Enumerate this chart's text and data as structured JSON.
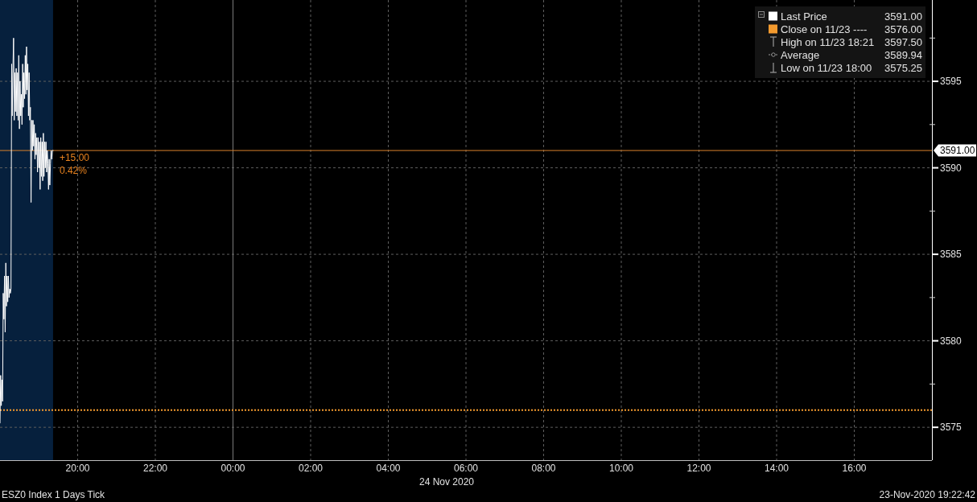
{
  "chart_data": {
    "type": "line",
    "title": "ESZ0 Index 1 Days Tick",
    "subtitle": "23-Nov-2020 19:22:42",
    "xlabel": "24 Nov 2020",
    "x": [
      "2020-11-23T18:00",
      "2020-11-23T18:01",
      "2020-11-23T18:02",
      "2020-11-23T18:03",
      "2020-11-23T18:04",
      "2020-11-23T18:05",
      "2020-11-23T18:06",
      "2020-11-23T18:07",
      "2020-11-23T18:08",
      "2020-11-23T18:09",
      "2020-11-23T18:10",
      "2020-11-23T18:11",
      "2020-11-23T18:12",
      "2020-11-23T18:13",
      "2020-11-23T18:14",
      "2020-11-23T18:15",
      "2020-11-23T18:16",
      "2020-11-23T18:17",
      "2020-11-23T18:18",
      "2020-11-23T18:19",
      "2020-11-23T18:20",
      "2020-11-23T18:21",
      "2020-11-23T18:22",
      "2020-11-23T18:23",
      "2020-11-23T18:24",
      "2020-11-23T18:25",
      "2020-11-23T18:26",
      "2020-11-23T18:27",
      "2020-11-23T18:28",
      "2020-11-23T18:29",
      "2020-11-23T18:30",
      "2020-11-23T18:31",
      "2020-11-23T18:32",
      "2020-11-23T18:33",
      "2020-11-23T18:34",
      "2020-11-23T18:35",
      "2020-11-23T18:36",
      "2020-11-23T18:37",
      "2020-11-23T18:38",
      "2020-11-23T18:39",
      "2020-11-23T18:40",
      "2020-11-23T18:41",
      "2020-11-23T18:42",
      "2020-11-23T18:43",
      "2020-11-23T18:44",
      "2020-11-23T18:45",
      "2020-11-23T18:46",
      "2020-11-23T18:47",
      "2020-11-23T18:48",
      "2020-11-23T18:49",
      "2020-11-23T18:50",
      "2020-11-23T18:51",
      "2020-11-23T18:52",
      "2020-11-23T18:53",
      "2020-11-23T18:54",
      "2020-11-23T18:55",
      "2020-11-23T18:56",
      "2020-11-23T18:57",
      "2020-11-23T18:58",
      "2020-11-23T18:59",
      "2020-11-23T19:00",
      "2020-11-23T19:01",
      "2020-11-23T19:02",
      "2020-11-23T19:03",
      "2020-11-23T19:04",
      "2020-11-23T19:05",
      "2020-11-23T19:06",
      "2020-11-23T19:07",
      "2020-11-23T19:08",
      "2020-11-23T19:09",
      "2020-11-23T19:10",
      "2020-11-23T19:11",
      "2020-11-23T19:12",
      "2020-11-23T19:13",
      "2020-11-23T19:14",
      "2020-11-23T19:15",
      "2020-11-23T19:16",
      "2020-11-23T19:17",
      "2020-11-23T19:18",
      "2020-11-23T19:19",
      "2020-11-23T19:20",
      "2020-11-23T19:21",
      "2020-11-23T19:22"
    ],
    "series": [
      {
        "name": "Last Price",
        "color": "#ffffff",
        "values": [
          3575.25,
          3578.0,
          3576.25,
          3577.75,
          3576.5,
          3582.75,
          3581.25,
          3583.75,
          3580.5,
          3584.5,
          3582.0,
          3583.75,
          3582.25,
          3583.75,
          3582.5,
          3583.0,
          3582.75,
          3583.0,
          3596.0,
          3593.0,
          3595.75,
          3597.5,
          3592.75,
          3595.5,
          3593.25,
          3595.75,
          3593.0,
          3595.5,
          3592.75,
          3596.5,
          3592.25,
          3595.0,
          3593.0,
          3594.25,
          3592.5,
          3596.0,
          3593.5,
          3595.5,
          3594.0,
          3596.5,
          3594.25,
          3597.0,
          3594.5,
          3596.0,
          3593.0,
          3595.5,
          3592.75,
          3593.5,
          3588.0,
          3592.75,
          3591.0,
          3592.75,
          3591.25,
          3592.5,
          3590.5,
          3592.0,
          3590.75,
          3591.75,
          3589.75,
          3591.75,
          3590.0,
          3591.5,
          3588.75,
          3591.75,
          3589.5,
          3591.5,
          3589.25,
          3592.0,
          3589.5,
          3591.5,
          3590.0,
          3591.5,
          3589.75,
          3591.0,
          3590.25,
          3588.75,
          3590.5,
          3589.0,
          3590.25,
          3591.0,
          3590.5,
          3591.0,
          3591.0
        ]
      }
    ],
    "xlim": [
      "2020-11-23T18:00",
      "2020-11-24T18:00"
    ],
    "xticks": [
      {
        "value": "2020-11-23T20:00",
        "label": "20:00"
      },
      {
        "value": "2020-11-23T22:00",
        "label": "22:00"
      },
      {
        "value": "2020-11-24T00:00",
        "label": "00:00"
      },
      {
        "value": "2020-11-24T02:00",
        "label": "02:00"
      },
      {
        "value": "2020-11-24T04:00",
        "label": "04:00"
      },
      {
        "value": "2020-11-24T06:00",
        "label": "06:00"
      },
      {
        "value": "2020-11-24T08:00",
        "label": "08:00"
      },
      {
        "value": "2020-11-24T10:00",
        "label": "10:00"
      },
      {
        "value": "2020-11-24T12:00",
        "label": "12:00"
      },
      {
        "value": "2020-11-24T14:00",
        "label": "14:00"
      },
      {
        "value": "2020-11-24T16:00",
        "label": "16:00"
      }
    ],
    "ylim": [
      3573.1,
      3599.7
    ],
    "yticks": [
      3575,
      {
        "value": 3577.5,
        "label": null
      },
      3580,
      {
        "value": 3582.5,
        "label": null
      },
      3585,
      {
        "value": 3587.5,
        "label": null
      },
      3590,
      {
        "value": 3592.5,
        "label": null
      },
      3595,
      {
        "value": 3597.5,
        "label": null
      }
    ],
    "ref_lines": [
      {
        "axis": "x",
        "value": "2020-11-24T00:00",
        "color": "#7a7a7a",
        "line_style": "solid"
      },
      {
        "axis": "y",
        "value": 3576,
        "label": "Close on 11/23 ---- 3576.00",
        "color": "#f39a2e",
        "line_style": "dotted"
      },
      {
        "axis": "y",
        "value": 3591,
        "label": "3591.00",
        "color": "#d9822b",
        "line_style": "solid"
      }
    ],
    "bands": [
      {
        "axis": "x",
        "from": "2020-11-23T18:00",
        "to": "2020-11-23T19:22",
        "color": "#06203d"
      }
    ],
    "annotations": [
      "High on 11/23 18:21 3597.50",
      "Average 3589.94",
      "Low on 11/23 18:00 3575.25",
      {
        "text": "+15.00",
        "x": "2020-11-23T19:22",
        "y": 3591
      },
      {
        "text": "0.42%",
        "x": "2020-11-23T19:22",
        "y": 3591
      }
    ],
    "grid": true,
    "legend": "top right"
  }
}
